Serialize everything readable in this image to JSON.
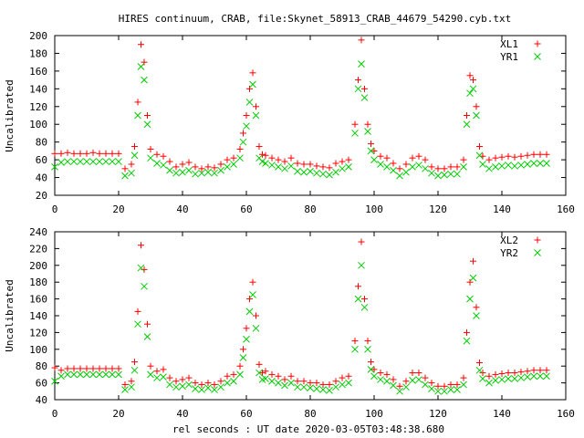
{
  "chart_data": [
    {
      "type": "scatter",
      "title": "HIRES continuum, CRAB, file:Skynet_58913_CRAB_44679_54290.cyb.txt",
      "xlabel": "",
      "ylabel": "Uncalibrated",
      "xlim": [
        0,
        160
      ],
      "ylim": [
        20,
        200
      ],
      "xticks": [
        0,
        20,
        40,
        60,
        80,
        100,
        120,
        140,
        160
      ],
      "yticks": [
        20,
        40,
        60,
        80,
        100,
        120,
        140,
        160,
        180,
        200
      ],
      "grid": false,
      "legend_placement": "top-right",
      "series": [
        {
          "name": "XL1",
          "marker": "plus",
          "color": "#ff0000",
          "x": [
            0,
            2,
            4,
            6,
            8,
            10,
            12,
            14,
            16,
            18,
            20,
            22,
            24,
            25,
            26,
            27,
            28,
            29,
            30,
            32,
            34,
            36,
            38,
            40,
            42,
            44,
            46,
            48,
            50,
            52,
            54,
            56,
            58,
            59,
            60,
            61,
            62,
            63,
            64,
            65,
            66,
            68,
            70,
            72,
            74,
            76,
            78,
            80,
            82,
            84,
            86,
            88,
            90,
            92,
            94,
            95,
            96,
            97,
            98,
            99,
            100,
            102,
            104,
            106,
            108,
            110,
            112,
            114,
            116,
            118,
            120,
            122,
            124,
            126,
            128,
            129,
            130,
            131,
            132,
            133,
            134,
            136,
            138,
            140,
            142,
            144,
            146,
            148,
            150,
            152,
            154
          ],
          "y": [
            67,
            67,
            68,
            67,
            67,
            67,
            68,
            67,
            67,
            67,
            67,
            50,
            55,
            75,
            125,
            190,
            170,
            110,
            72,
            66,
            64,
            58,
            52,
            55,
            57,
            52,
            50,
            52,
            51,
            55,
            60,
            62,
            72,
            90,
            110,
            140,
            158,
            120,
            75,
            66,
            65,
            62,
            60,
            58,
            62,
            56,
            55,
            55,
            53,
            52,
            51,
            56,
            58,
            60,
            100,
            150,
            195,
            140,
            100,
            78,
            70,
            64,
            62,
            56,
            50,
            55,
            62,
            64,
            60,
            52,
            50,
            50,
            52,
            52,
            60,
            110,
            155,
            150,
            120,
            75,
            64,
            60,
            62,
            63,
            64,
            63,
            64,
            65,
            66,
            66,
            66
          ]
        },
        {
          "name": "YR1",
          "marker": "cross",
          "color": "#00cc00",
          "x": [
            0,
            2,
            4,
            6,
            8,
            10,
            12,
            14,
            16,
            18,
            20,
            22,
            24,
            25,
            26,
            27,
            28,
            29,
            30,
            32,
            34,
            36,
            38,
            40,
            42,
            44,
            46,
            48,
            50,
            52,
            54,
            56,
            58,
            59,
            60,
            61,
            62,
            63,
            64,
            65,
            66,
            68,
            70,
            72,
            74,
            76,
            78,
            80,
            82,
            84,
            86,
            88,
            90,
            92,
            94,
            95,
            96,
            97,
            98,
            99,
            100,
            102,
            104,
            106,
            108,
            110,
            112,
            114,
            116,
            118,
            120,
            122,
            124,
            126,
            128,
            129,
            130,
            131,
            132,
            133,
            134,
            136,
            138,
            140,
            142,
            144,
            146,
            148,
            150,
            152,
            154
          ],
          "y": [
            52,
            57,
            58,
            58,
            58,
            58,
            58,
            58,
            58,
            58,
            58,
            42,
            45,
            65,
            110,
            165,
            150,
            100,
            62,
            56,
            54,
            48,
            45,
            46,
            48,
            44,
            45,
            46,
            45,
            48,
            52,
            55,
            62,
            80,
            98,
            125,
            145,
            110,
            62,
            58,
            56,
            54,
            52,
            50,
            53,
            47,
            46,
            47,
            45,
            44,
            43,
            46,
            50,
            52,
            90,
            140,
            168,
            130,
            92,
            70,
            60,
            55,
            52,
            48,
            42,
            46,
            52,
            54,
            50,
            45,
            42,
            43,
            44,
            44,
            52,
            100,
            135,
            140,
            110,
            65,
            55,
            50,
            52,
            53,
            54,
            53,
            54,
            55,
            56,
            56,
            56
          ]
        }
      ]
    },
    {
      "type": "scatter",
      "title": "",
      "xlabel": "rel seconds : UT date 2020-03-05T03:48:38.680",
      "ylabel": "Uncalibrated",
      "xlim": [
        0,
        160
      ],
      "ylim": [
        40,
        240
      ],
      "xticks": [
        0,
        20,
        40,
        60,
        80,
        100,
        120,
        140,
        160
      ],
      "yticks": [
        40,
        60,
        80,
        100,
        120,
        140,
        160,
        180,
        200,
        220,
        240
      ],
      "grid": false,
      "legend_placement": "top-right",
      "series": [
        {
          "name": "XL2",
          "marker": "plus",
          "color": "#ff0000",
          "x": [
            0,
            2,
            4,
            6,
            8,
            10,
            12,
            14,
            16,
            18,
            20,
            22,
            24,
            25,
            26,
            27,
            28,
            29,
            30,
            32,
            34,
            36,
            38,
            40,
            42,
            44,
            46,
            48,
            50,
            52,
            54,
            56,
            58,
            59,
            60,
            61,
            62,
            63,
            64,
            65,
            66,
            68,
            70,
            72,
            74,
            76,
            78,
            80,
            82,
            84,
            86,
            88,
            90,
            92,
            94,
            95,
            96,
            97,
            98,
            99,
            100,
            102,
            104,
            106,
            108,
            110,
            112,
            114,
            116,
            118,
            120,
            122,
            124,
            126,
            128,
            129,
            130,
            131,
            132,
            133,
            134,
            136,
            138,
            140,
            142,
            144,
            146,
            148,
            150,
            152,
            154
          ],
          "y": [
            78,
            75,
            77,
            77,
            77,
            77,
            77,
            77,
            77,
            77,
            77,
            58,
            62,
            85,
            145,
            224,
            195,
            130,
            80,
            74,
            76,
            66,
            62,
            64,
            66,
            60,
            58,
            60,
            58,
            62,
            68,
            70,
            80,
            100,
            125,
            160,
            180,
            140,
            82,
            72,
            74,
            70,
            68,
            64,
            68,
            62,
            62,
            60,
            60,
            58,
            58,
            62,
            66,
            68,
            110,
            175,
            228,
            160,
            110,
            85,
            76,
            72,
            70,
            64,
            56,
            62,
            72,
            72,
            66,
            60,
            56,
            56,
            58,
            58,
            66,
            120,
            180,
            205,
            150,
            84,
            72,
            68,
            70,
            71,
            72,
            72,
            73,
            74,
            75,
            75,
            75
          ]
        },
        {
          "name": "YR2",
          "marker": "cross",
          "color": "#00cc00",
          "x": [
            0,
            2,
            4,
            6,
            8,
            10,
            12,
            14,
            16,
            18,
            20,
            22,
            24,
            25,
            26,
            27,
            28,
            29,
            30,
            32,
            34,
            36,
            38,
            40,
            42,
            44,
            46,
            48,
            50,
            52,
            54,
            56,
            58,
            59,
            60,
            61,
            62,
            63,
            64,
            65,
            66,
            68,
            70,
            72,
            74,
            76,
            78,
            80,
            82,
            84,
            86,
            88,
            90,
            92,
            94,
            95,
            96,
            97,
            98,
            99,
            100,
            102,
            104,
            106,
            108,
            110,
            112,
            114,
            116,
            118,
            120,
            122,
            124,
            126,
            128,
            129,
            130,
            131,
            132,
            133,
            134,
            136,
            138,
            140,
            142,
            144,
            146,
            148,
            150,
            152,
            154
          ],
          "y": [
            62,
            68,
            70,
            70,
            70,
            70,
            70,
            70,
            70,
            70,
            70,
            52,
            55,
            75,
            130,
            197,
            175,
            115,
            70,
            66,
            67,
            58,
            55,
            56,
            58,
            53,
            52,
            54,
            52,
            55,
            60,
            62,
            70,
            90,
            112,
            145,
            165,
            125,
            72,
            64,
            65,
            62,
            60,
            57,
            60,
            55,
            55,
            54,
            53,
            52,
            51,
            55,
            58,
            60,
            100,
            160,
            200,
            150,
            100,
            76,
            68,
            64,
            62,
            57,
            50,
            55,
            63,
            64,
            58,
            53,
            50,
            50,
            52,
            52,
            58,
            110,
            160,
            185,
            140,
            75,
            65,
            60,
            63,
            64,
            65,
            65,
            66,
            67,
            68,
            68,
            68
          ]
        }
      ]
    }
  ]
}
